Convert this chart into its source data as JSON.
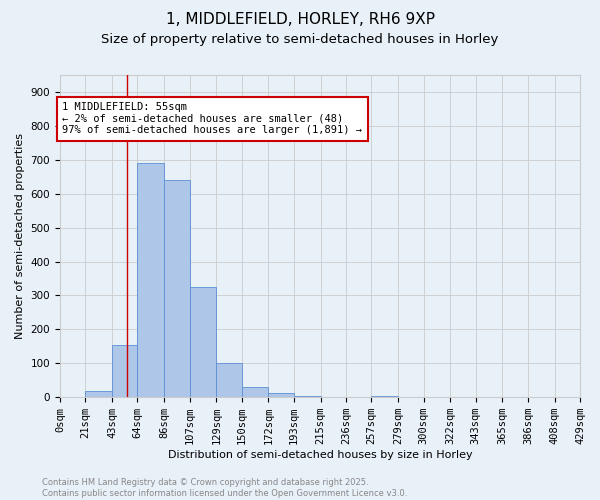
{
  "title1": "1, MIDDLEFIELD, HORLEY, RH6 9XP",
  "title2": "Size of property relative to semi-detached houses in Horley",
  "xlabel": "Distribution of semi-detached houses by size in Horley",
  "ylabel": "Number of semi-detached properties",
  "bin_edges": [
    0,
    21,
    43,
    64,
    86,
    107,
    129,
    150,
    172,
    193,
    215,
    236,
    257,
    279,
    300,
    322,
    343,
    365,
    386,
    408,
    429
  ],
  "bar_heights": [
    0,
    18,
    155,
    690,
    640,
    325,
    100,
    30,
    12,
    5,
    0,
    0,
    5,
    0,
    0,
    0,
    0,
    0,
    0,
    0
  ],
  "bar_color": "#aec6e8",
  "bar_edge_color": "#5b8fd4",
  "grid_color": "#cccccc",
  "background_color": "#e8f0f8",
  "vline_x": 55,
  "vline_color": "#cc0000",
  "annotation_text": "1 MIDDLEFIELD: 55sqm\n← 2% of semi-detached houses are smaller (48)\n97% of semi-detached houses are larger (1,891) →",
  "annotation_box_color": "#ffffff",
  "annotation_box_edge": "#cc0000",
  "ylim": [
    0,
    950
  ],
  "yticks": [
    0,
    100,
    200,
    300,
    400,
    500,
    600,
    700,
    800,
    900
  ],
  "tick_labels": [
    "0sqm",
    "21sqm",
    "43sqm",
    "64sqm",
    "86sqm",
    "107sqm",
    "129sqm",
    "150sqm",
    "172sqm",
    "193sqm",
    "215sqm",
    "236sqm",
    "257sqm",
    "279sqm",
    "300sqm",
    "322sqm",
    "343sqm",
    "365sqm",
    "386sqm",
    "408sqm",
    "429sqm"
  ],
  "footnote": "Contains HM Land Registry data © Crown copyright and database right 2025.\nContains public sector information licensed under the Open Government Licence v3.0.",
  "footnote_color": "#888888",
  "title_fontsize": 11,
  "subtitle_fontsize": 9.5,
  "axis_label_fontsize": 8,
  "tick_fontsize": 7.5,
  "annotation_fontsize": 7.5,
  "footnote_fontsize": 6
}
